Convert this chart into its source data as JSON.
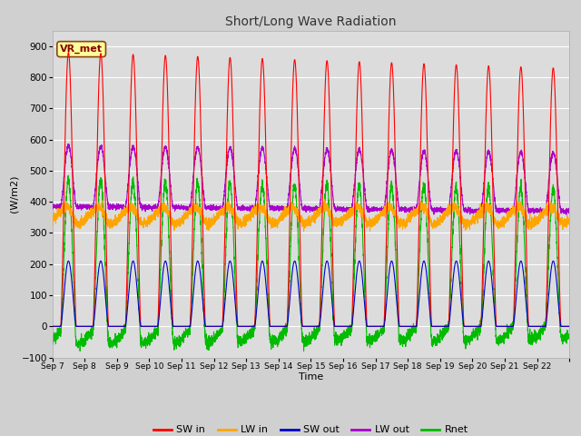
{
  "title": "Short/Long Wave Radiation",
  "xlabel": "Time",
  "ylabel": "(W/m2)",
  "ylim": [
    -100,
    950
  ],
  "yticks": [
    -100,
    0,
    100,
    200,
    300,
    400,
    500,
    600,
    700,
    800,
    900
  ],
  "num_days": 16,
  "x_tick_labels": [
    "Sep 7",
    "Sep 8",
    "Sep 9",
    "Sep 10",
    "Sep 11",
    "Sep 12",
    "Sep 13",
    "Sep 14",
    "Sep 15",
    "Sep 16",
    "Sep 17",
    "Sep 18",
    "Sep 19",
    "Sep 20",
    "Sep 21",
    "Sep 22"
  ],
  "colors": {
    "SW_in": "#ff0000",
    "LW_in": "#ffa500",
    "SW_out": "#0000cc",
    "LW_out": "#aa00cc",
    "Rnet": "#00bb00"
  },
  "label_box": "VR_met",
  "legend_labels": [
    "SW in",
    "LW in",
    "SW out",
    "LW out",
    "Rnet"
  ],
  "plot_bg": "#dcdcdc",
  "fig_bg": "#d0d0d0",
  "grid_color": "#ffffff",
  "title_color": "#333333"
}
